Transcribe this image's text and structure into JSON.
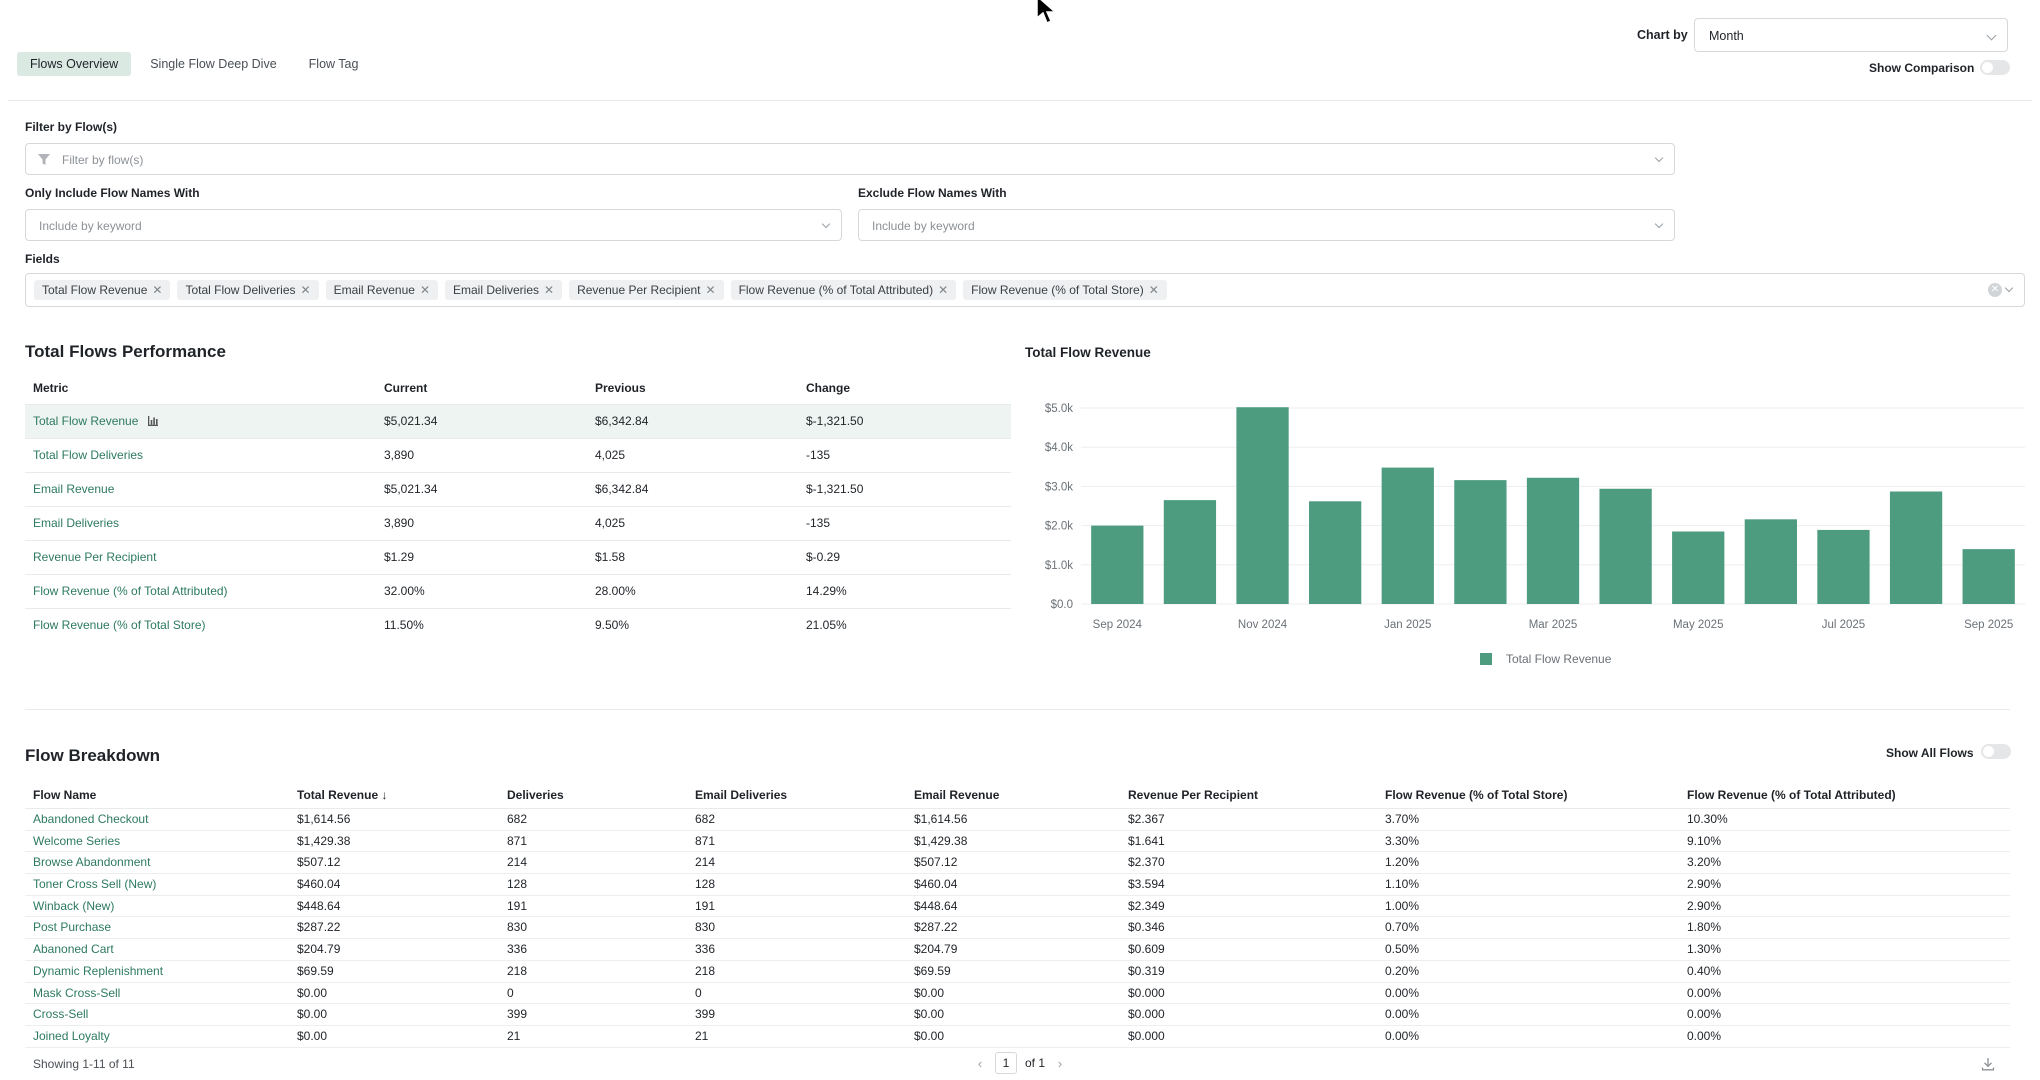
{
  "tabs": [
    {
      "label": "Flows Overview",
      "active": true
    },
    {
      "label": "Single Flow Deep Dive",
      "active": false
    },
    {
      "label": "Flow Tag",
      "active": false
    }
  ],
  "chart_by": {
    "label": "Chart by",
    "value": "Month"
  },
  "show_comparison": {
    "label": "Show Comparison",
    "on": false
  },
  "filters": {
    "flow_label": "Filter by Flow(s)",
    "flow_placeholder": "Filter by flow(s)",
    "include_label": "Only Include Flow Names With",
    "include_placeholder": "Include by keyword",
    "exclude_label": "Exclude Flow Names With",
    "exclude_placeholder": "Include by keyword",
    "fields_label": "Fields",
    "fields": [
      "Total Flow Revenue",
      "Total Flow Deliveries",
      "Email Revenue",
      "Email Deliveries",
      "Revenue Per Recipient",
      "Flow Revenue (% of Total Attributed)",
      "Flow Revenue (% of Total Store)"
    ]
  },
  "performance": {
    "title": "Total Flows Performance",
    "headers": [
      "Metric",
      "Current",
      "Previous",
      "Change"
    ],
    "rows": [
      {
        "metric": "Total Flow Revenue",
        "current": "$5,021.34",
        "previous": "$6,342.84",
        "change": "$-1,321.50"
      },
      {
        "metric": "Total Flow Deliveries",
        "current": "3,890",
        "previous": "4,025",
        "change": "-135"
      },
      {
        "metric": "Email Revenue",
        "current": "$5,021.34",
        "previous": "$6,342.84",
        "change": "$-1,321.50"
      },
      {
        "metric": "Email Deliveries",
        "current": "3,890",
        "previous": "4,025",
        "change": "-135"
      },
      {
        "metric": "Revenue Per Recipient",
        "current": "$1.29",
        "previous": "$1.58",
        "change": "$-0.29"
      },
      {
        "metric": "Flow Revenue (% of Total Attributed)",
        "current": "32.00%",
        "previous": "28.00%",
        "change": "14.29%"
      },
      {
        "metric": "Flow Revenue (% of Total Store)",
        "current": "11.50%",
        "previous": "9.50%",
        "change": "21.05%"
      }
    ]
  },
  "chart_data": {
    "type": "bar",
    "title": "Total Flow Revenue",
    "categories": [
      "Sep 2024",
      "Oct 2024",
      "Nov 2024",
      "Dec 2024",
      "Jan 2025",
      "Feb 2025",
      "Mar 2025",
      "Apr 2025",
      "May 2025",
      "Jun 2025",
      "Jul 2025",
      "Aug 2025",
      "Sep 2025"
    ],
    "x_tick_labels": [
      "Sep 2024",
      "Nov 2024",
      "Jan 2025",
      "Mar 2025",
      "May 2025",
      "Jul 2025",
      "Sep 2025"
    ],
    "series": [
      {
        "name": "Total Flow Revenue",
        "values": [
          2000,
          2650,
          5020,
          2620,
          3480,
          3160,
          3220,
          2940,
          1850,
          2160,
          1890,
          2870,
          1400
        ]
      }
    ],
    "ylim": [
      0,
      5000
    ],
    "y_tick_labels": [
      "$0.0",
      "$1.0k",
      "$2.0k",
      "$3.0k",
      "$4.0k",
      "$5.0k"
    ],
    "y_ticks": [
      0,
      1000,
      2000,
      3000,
      4000,
      5000
    ],
    "grid": true,
    "legend": "bottom",
    "color": "#4e9c80"
  },
  "breakdown": {
    "title": "Flow Breakdown",
    "show_all": {
      "label": "Show All Flows",
      "on": false
    },
    "headers": [
      "Flow Name",
      "Total Revenue ↓",
      "Deliveries",
      "Email Deliveries",
      "Email Revenue",
      "Revenue Per Recipient",
      "Flow Revenue (% of Total Store)",
      "Flow Revenue (% of Total Attributed)"
    ],
    "rows": [
      [
        "Abandoned Checkout",
        "$1,614.56",
        "682",
        "682",
        "$1,614.56",
        "$2.367",
        "3.70%",
        "10.30%"
      ],
      [
        "Welcome Series",
        "$1,429.38",
        "871",
        "871",
        "$1,429.38",
        "$1.641",
        "3.30%",
        "9.10%"
      ],
      [
        "Browse Abandonment",
        "$507.12",
        "214",
        "214",
        "$507.12",
        "$2.370",
        "1.20%",
        "3.20%"
      ],
      [
        "Toner Cross Sell (New)",
        "$460.04",
        "128",
        "128",
        "$460.04",
        "$3.594",
        "1.10%",
        "2.90%"
      ],
      [
        "Winback (New)",
        "$448.64",
        "191",
        "191",
        "$448.64",
        "$2.349",
        "1.00%",
        "2.90%"
      ],
      [
        "Post Purchase",
        "$287.22",
        "830",
        "830",
        "$287.22",
        "$0.346",
        "0.70%",
        "1.80%"
      ],
      [
        "Abanoned Cart",
        "$204.79",
        "336",
        "336",
        "$204.79",
        "$0.609",
        "0.50%",
        "1.30%"
      ],
      [
        "Dynamic Replenishment",
        "$69.59",
        "218",
        "218",
        "$69.59",
        "$0.319",
        "0.20%",
        "0.40%"
      ],
      [
        "Mask Cross-Sell",
        "$0.00",
        "0",
        "0",
        "$0.00",
        "$0.000",
        "0.00%",
        "0.00%"
      ],
      [
        "Cross-Sell",
        "$0.00",
        "399",
        "399",
        "$0.00",
        "$0.000",
        "0.00%",
        "0.00%"
      ],
      [
        "Joined Loyalty",
        "$0.00",
        "21",
        "21",
        "$0.00",
        "$0.000",
        "0.00%",
        "0.00%"
      ]
    ],
    "footer": "Showing 1-11 of 11",
    "page": "1",
    "of_pages": "of 1"
  }
}
